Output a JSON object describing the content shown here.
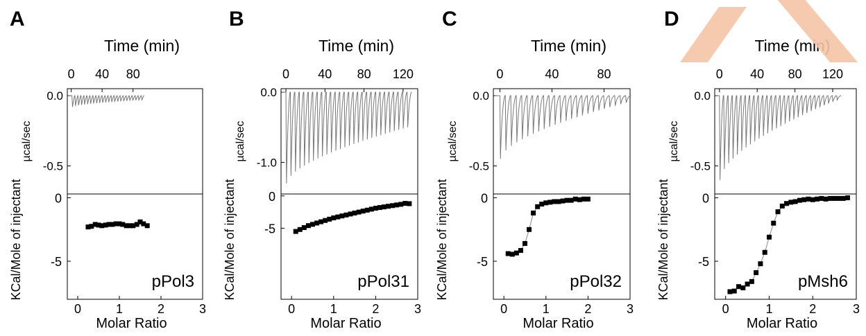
{
  "chart_data": [
    {
      "type": "line+scatter",
      "panel_letter": "A",
      "top": {
        "xlabel": "Time (min)",
        "ylabel": "µcal/sec",
        "x_ticks": [
          0,
          40,
          80
        ],
        "y_ticks": [
          0.0,
          -0.5
        ],
        "y_tick_labels": [
          "0.0",
          "-0.5"
        ],
        "xlim": [
          -5,
          170
        ],
        "ylim": [
          -0.7,
          0.05
        ],
        "injections": 24,
        "injection_interval_min": 3.9,
        "first_injection_min": 1,
        "peak_min": -0.08,
        "peak_max": -0.03
      },
      "bottom": {
        "xlabel": "Molar Ratio",
        "ylabel": "KCal/Mole of injectant",
        "x_ticks": [
          0,
          1,
          2,
          3
        ],
        "y_ticks": [
          0,
          -5
        ],
        "xlim": [
          -0.25,
          3
        ],
        "ylim": [
          -8,
          0.3
        ],
        "fit_x": [
          0.2,
          1.75
        ],
        "series": [
          {
            "x": [
              0.25,
              0.33,
              0.42,
              0.5,
              0.58,
              0.67,
              0.75,
              0.83,
              0.92,
              1.0,
              1.08,
              1.17,
              1.25,
              1.33,
              1.42,
              1.5,
              1.58,
              1.67
            ],
            "y": [
              -2.3,
              -2.25,
              -2.1,
              -2.15,
              -2.2,
              -2.15,
              -2.1,
              -2.1,
              -2.05,
              -2.05,
              -2.1,
              -2.2,
              -2.2,
              -2.2,
              -2.1,
              -1.9,
              -2.05,
              -2.2
            ]
          }
        ],
        "annotation": "pPol3"
      }
    },
    {
      "type": "line+scatter",
      "panel_letter": "B",
      "top": {
        "xlabel": "Time (min)",
        "ylabel": "µcal/sec",
        "x_ticks": [
          0,
          40,
          80,
          120
        ],
        "y_ticks": [
          0.0,
          -1.0
        ],
        "y_tick_labels": [
          "0.0",
          "-1.0"
        ],
        "xlim": [
          -5,
          135
        ],
        "ylim": [
          -1.45,
          0.05
        ],
        "injections": 28,
        "injection_interval_min": 4.6,
        "first_injection_min": 0,
        "peak_min": -1.3,
        "peak_max": -0.5
      },
      "bottom": {
        "xlabel": "Molar Ratio",
        "ylabel": "KCal/Mole of injectant",
        "x_ticks": [
          0,
          1,
          2,
          3
        ],
        "y_ticks": [
          0,
          -5
        ],
        "xlim": [
          -0.25,
          3
        ],
        "ylim": [
          -16,
          0.3
        ],
        "fit_x": [
          0.1,
          2.8
        ],
        "series": [
          {
            "x": [
              0.1,
              0.2,
              0.3,
              0.4,
              0.5,
              0.6,
              0.7,
              0.8,
              0.9,
              1.0,
              1.1,
              1.2,
              1.3,
              1.4,
              1.5,
              1.6,
              1.7,
              1.8,
              1.9,
              2.0,
              2.1,
              2.2,
              2.3,
              2.4,
              2.5,
              2.6,
              2.7,
              2.8
            ],
            "y": [
              -5.5,
              -5.2,
              -4.9,
              -4.6,
              -4.4,
              -4.2,
              -4.0,
              -3.8,
              -3.6,
              -3.4,
              -3.25,
              -3.1,
              -2.95,
              -2.8,
              -2.65,
              -2.5,
              -2.35,
              -2.2,
              -2.05,
              -1.9,
              -1.8,
              -1.7,
              -1.6,
              -1.5,
              -1.4,
              -1.3,
              -1.15,
              -1.2
            ]
          }
        ],
        "annotation": "pPol31"
      }
    },
    {
      "type": "line+scatter",
      "panel_letter": "C",
      "top": {
        "xlabel": "Time (min)",
        "ylabel": "µcal/sec",
        "x_ticks": [
          0,
          40,
          80
        ],
        "y_ticks": [
          0.0,
          -0.5
        ],
        "y_tick_labels": [
          "0.0",
          "-0.5"
        ],
        "xlim": [
          -5,
          100
        ],
        "ylim": [
          -0.7,
          0.05
        ],
        "injections": 24,
        "injection_interval_min": 4.2,
        "first_injection_min": 0,
        "peak_min": -0.45,
        "peak_max": -0.05
      },
      "bottom": {
        "xlabel": "Molar Ratio",
        "ylabel": "KCal/Mole of injectant",
        "x_ticks": [
          0,
          1,
          2,
          3
        ],
        "y_ticks": [
          0,
          -5
        ],
        "xlim": [
          -0.25,
          3
        ],
        "ylim": [
          -8,
          0.3
        ],
        "fit_x": [
          0.1,
          2.0
        ],
        "series": [
          {
            "x": [
              0.1,
              0.2,
              0.3,
              0.4,
              0.5,
              0.6,
              0.7,
              0.8,
              0.9,
              1.0,
              1.1,
              1.2,
              1.3,
              1.4,
              1.5,
              1.6,
              1.7,
              1.8,
              1.9,
              2.0
            ],
            "y": [
              -4.4,
              -4.45,
              -4.35,
              -4.15,
              -3.6,
              -2.5,
              -1.2,
              -0.7,
              -0.5,
              -0.4,
              -0.35,
              -0.3,
              -0.3,
              -0.25,
              -0.2,
              -0.2,
              -0.1,
              -0.15,
              -0.1,
              -0.1
            ]
          }
        ],
        "annotation": "pPol32"
      }
    },
    {
      "type": "line+scatter",
      "panel_letter": "D",
      "top": {
        "xlabel": "Time (min)",
        "ylabel": "µcal/sec",
        "x_ticks": [
          0,
          40,
          80,
          120
        ],
        "y_ticks": [
          0.0,
          -0.5
        ],
        "y_tick_labels": [
          "0.0",
          "-0.5"
        ],
        "xlim": [
          -5,
          145
        ],
        "ylim": [
          -0.7,
          0.05
        ],
        "injections": 28,
        "injection_interval_min": 4.6,
        "first_injection_min": 0,
        "peak_min": -0.6,
        "peak_max": -0.03
      },
      "bottom": {
        "xlabel": "Molar Ratio",
        "ylabel": "KCal/Mole of injectant",
        "x_ticks": [
          0,
          1,
          2,
          3
        ],
        "y_ticks": [
          0,
          -5
        ],
        "xlim": [
          -0.25,
          3
        ],
        "ylim": [
          -8,
          0.3
        ],
        "fit_x": [
          0.1,
          2.8
        ],
        "series": [
          {
            "x": [
              0.1,
              0.2,
              0.3,
              0.4,
              0.5,
              0.6,
              0.7,
              0.8,
              0.9,
              1.0,
              1.1,
              1.2,
              1.3,
              1.4,
              1.5,
              1.6,
              1.7,
              1.8,
              1.9,
              2.0,
              2.1,
              2.2,
              2.3,
              2.4,
              2.5,
              2.6,
              2.7,
              2.8
            ],
            "y": [
              -7.4,
              -7.35,
              -7.0,
              -7.1,
              -6.8,
              -6.6,
              -5.9,
              -5.2,
              -4.3,
              -3.1,
              -2.0,
              -1.1,
              -0.65,
              -0.45,
              -0.35,
              -0.3,
              -0.2,
              -0.15,
              -0.1,
              -0.15,
              -0.1,
              -0.05,
              -0.1,
              -0.05,
              -0.05,
              -0.05,
              -0.05,
              0.0
            ]
          }
        ],
        "annotation": "pMsh6"
      }
    }
  ]
}
